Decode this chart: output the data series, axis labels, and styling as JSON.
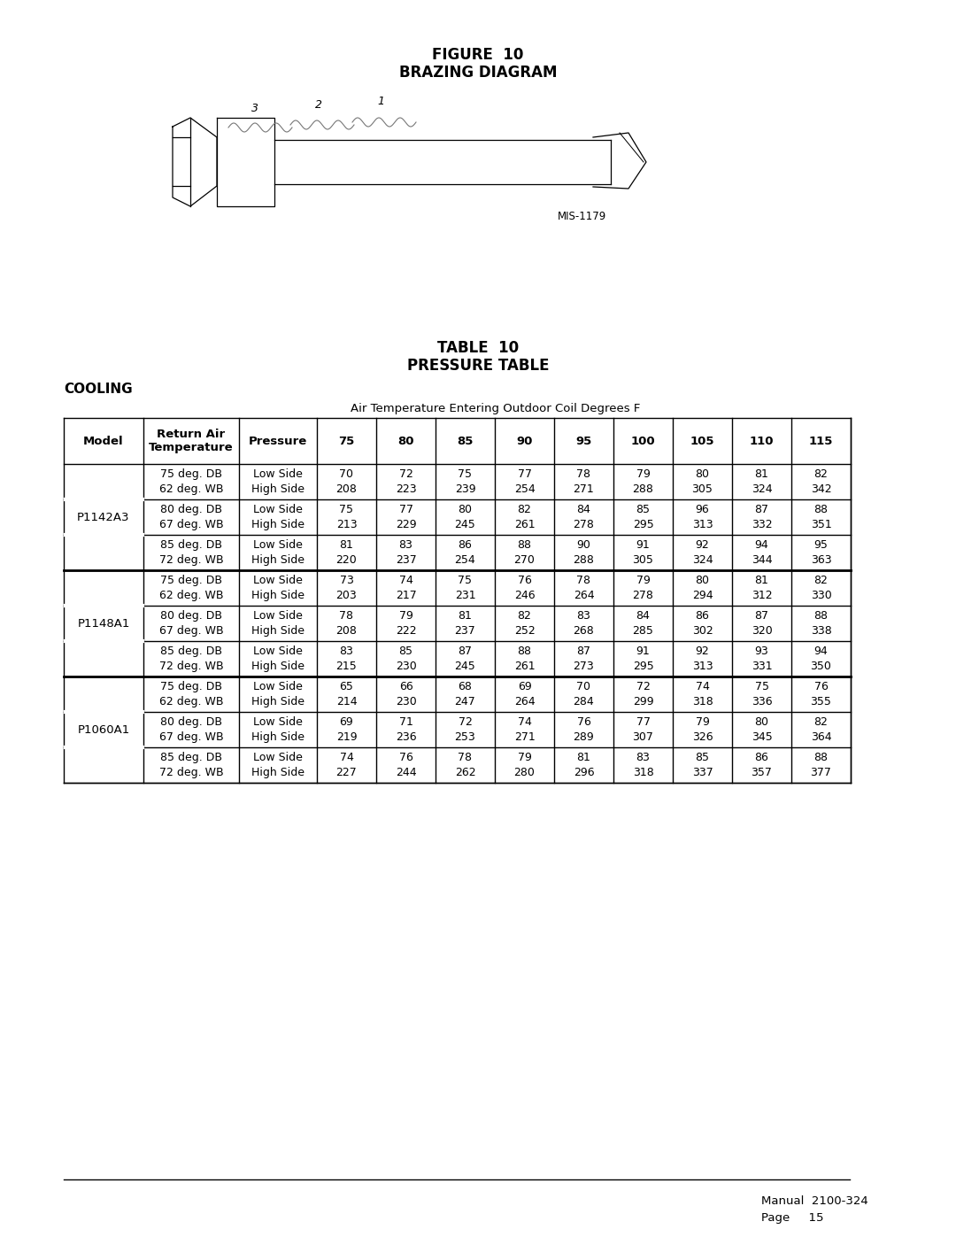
{
  "fig_title_line1": "FIGURE  10",
  "fig_title_line2": "BRAZING DIAGRAM",
  "mis_label": "MIS-1179",
  "table_title_line1": "TABLE  10",
  "table_title_line2": "PRESSURE TABLE",
  "cooling_label": "COOLING",
  "air_temp_label": "Air Temperature Entering Outdoor Coil Degrees F",
  "col_headers": [
    "Model",
    "Return Air\nTemperature",
    "Pressure",
    "75",
    "80",
    "85",
    "90",
    "95",
    "100",
    "105",
    "110",
    "115"
  ],
  "table_data": [
    [
      "P1142A3",
      "75 deg. DB\n62 deg. WB",
      "Low Side\nHigh Side",
      "70\n208",
      "72\n223",
      "75\n239",
      "77\n254",
      "78\n271",
      "79\n288",
      "80\n305",
      "81\n324",
      "82\n342"
    ],
    [
      "P1142A3",
      "80 deg. DB\n67 deg. WB",
      "Low Side\nHigh Side",
      "75\n213",
      "77\n229",
      "80\n245",
      "82\n261",
      "84\n278",
      "85\n295",
      "96\n313",
      "87\n332",
      "88\n351"
    ],
    [
      "P1142A3",
      "85 deg. DB\n72 deg. WB",
      "Low Side\nHigh Side",
      "81\n220",
      "83\n237",
      "86\n254",
      "88\n270",
      "90\n288",
      "91\n305",
      "92\n324",
      "94\n344",
      "95\n363"
    ],
    [
      "P1148A1",
      "75 deg. DB\n62 deg. WB",
      "Low Side\nHigh Side",
      "73\n203",
      "74\n217",
      "75\n231",
      "76\n246",
      "78\n264",
      "79\n278",
      "80\n294",
      "81\n312",
      "82\n330"
    ],
    [
      "P1148A1",
      "80 deg. DB\n67 deg. WB",
      "Low Side\nHigh Side",
      "78\n208",
      "79\n222",
      "81\n237",
      "82\n252",
      "83\n268",
      "84\n285",
      "86\n302",
      "87\n320",
      "88\n338"
    ],
    [
      "P1148A1",
      "85 deg. DB\n72 deg. WB",
      "Low Side\nHigh Side",
      "83\n215",
      "85\n230",
      "87\n245",
      "88\n261",
      "87\n273",
      "91\n295",
      "92\n313",
      "93\n331",
      "94\n350"
    ],
    [
      "P1060A1",
      "75 deg. DB\n62 deg. WB",
      "Low Side\nHigh Side",
      "65\n214",
      "66\n230",
      "68\n247",
      "69\n264",
      "70\n284",
      "72\n299",
      "74\n318",
      "75\n336",
      "76\n355"
    ],
    [
      "P1060A1",
      "80 deg. DB\n67 deg. WB",
      "Low Side\nHigh Side",
      "69\n219",
      "71\n236",
      "72\n253",
      "74\n271",
      "76\n289",
      "77\n307",
      "79\n326",
      "80\n345",
      "82\n364"
    ],
    [
      "P1060A1",
      "85 deg. DB\n72 deg. WB",
      "Low Side\nHigh Side",
      "74\n227",
      "76\n244",
      "78\n262",
      "79\n280",
      "81\n296",
      "83\n318",
      "85\n337",
      "86\n357",
      "88\n377"
    ]
  ],
  "bg_color": "#ffffff",
  "text_color": "#000000",
  "line_color": "#000000"
}
